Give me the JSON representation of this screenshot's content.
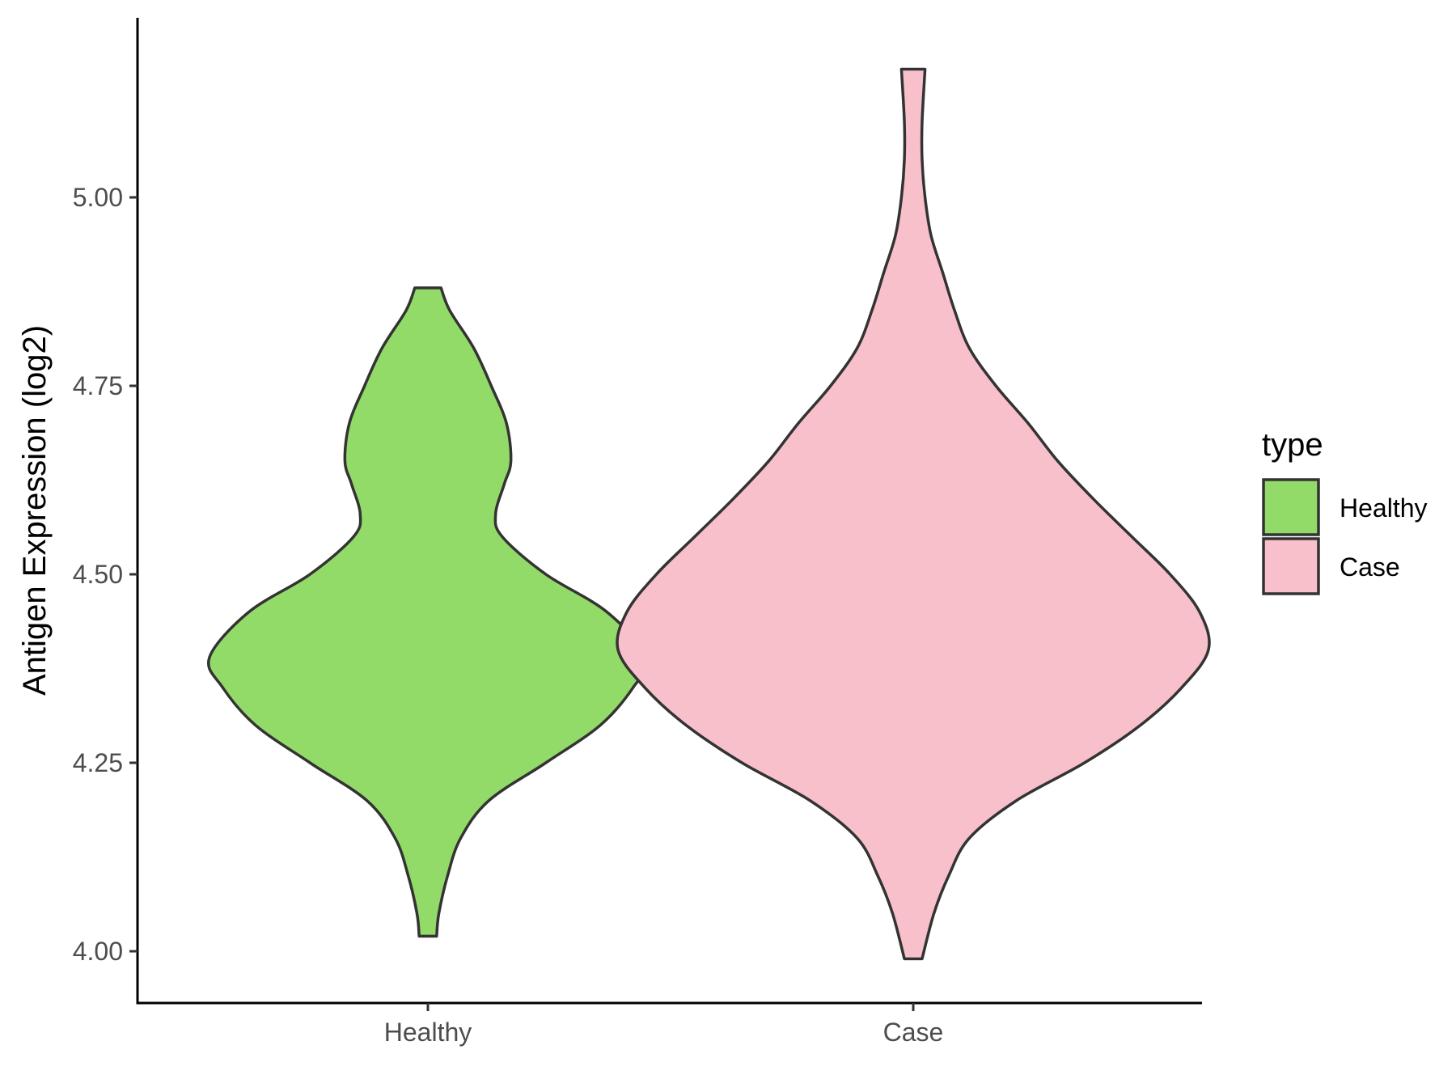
{
  "chart_data": {
    "type": "violin",
    "ylabel": "Antigen Expression (log2)",
    "xlabel": "",
    "ylim": [
      3.93,
      5.24
    ],
    "yticks": [
      "4.00",
      "4.25",
      "4.50",
      "4.75",
      "5.00"
    ],
    "ytick_values": [
      4.0,
      4.25,
      4.5,
      4.75,
      5.0
    ],
    "categories": [
      "Healthy",
      "Case"
    ],
    "grid": false,
    "legend": {
      "title": "type",
      "position": "right",
      "entries": [
        {
          "label": "Healthy",
          "color": "#93DB69"
        },
        {
          "label": "Case",
          "color": "#F7C0CB"
        }
      ]
    },
    "series": [
      {
        "name": "Healthy",
        "color": "#93DB69",
        "y_min": 4.02,
        "y_max": 4.88,
        "density": [
          [
            4.02,
            0.04
          ],
          [
            4.05,
            0.05
          ],
          [
            4.1,
            0.09
          ],
          [
            4.15,
            0.15
          ],
          [
            4.2,
            0.28
          ],
          [
            4.25,
            0.54
          ],
          [
            4.3,
            0.79
          ],
          [
            4.35,
            0.94
          ],
          [
            4.39,
            1.0
          ],
          [
            4.45,
            0.82
          ],
          [
            4.5,
            0.54
          ],
          [
            4.55,
            0.34
          ],
          [
            4.58,
            0.31
          ],
          [
            4.62,
            0.35
          ],
          [
            4.65,
            0.38
          ],
          [
            4.7,
            0.36
          ],
          [
            4.75,
            0.29
          ],
          [
            4.8,
            0.21
          ],
          [
            4.85,
            0.1
          ],
          [
            4.88,
            0.06
          ]
        ]
      },
      {
        "name": "Case",
        "color": "#F7C0CB",
        "y_min": 3.99,
        "y_max": 5.17,
        "density": [
          [
            3.99,
            0.03
          ],
          [
            4.05,
            0.07
          ],
          [
            4.1,
            0.12
          ],
          [
            4.15,
            0.19
          ],
          [
            4.2,
            0.35
          ],
          [
            4.25,
            0.58
          ],
          [
            4.3,
            0.77
          ],
          [
            4.35,
            0.91
          ],
          [
            4.4,
            1.0
          ],
          [
            4.45,
            0.97
          ],
          [
            4.5,
            0.87
          ],
          [
            4.55,
            0.74
          ],
          [
            4.6,
            0.61
          ],
          [
            4.65,
            0.49
          ],
          [
            4.7,
            0.39
          ],
          [
            4.75,
            0.28
          ],
          [
            4.8,
            0.19
          ],
          [
            4.85,
            0.14
          ],
          [
            4.9,
            0.1
          ],
          [
            4.95,
            0.06
          ],
          [
            5.0,
            0.04
          ],
          [
            5.05,
            0.03
          ],
          [
            5.1,
            0.03
          ],
          [
            5.17,
            0.04
          ]
        ]
      }
    ]
  }
}
